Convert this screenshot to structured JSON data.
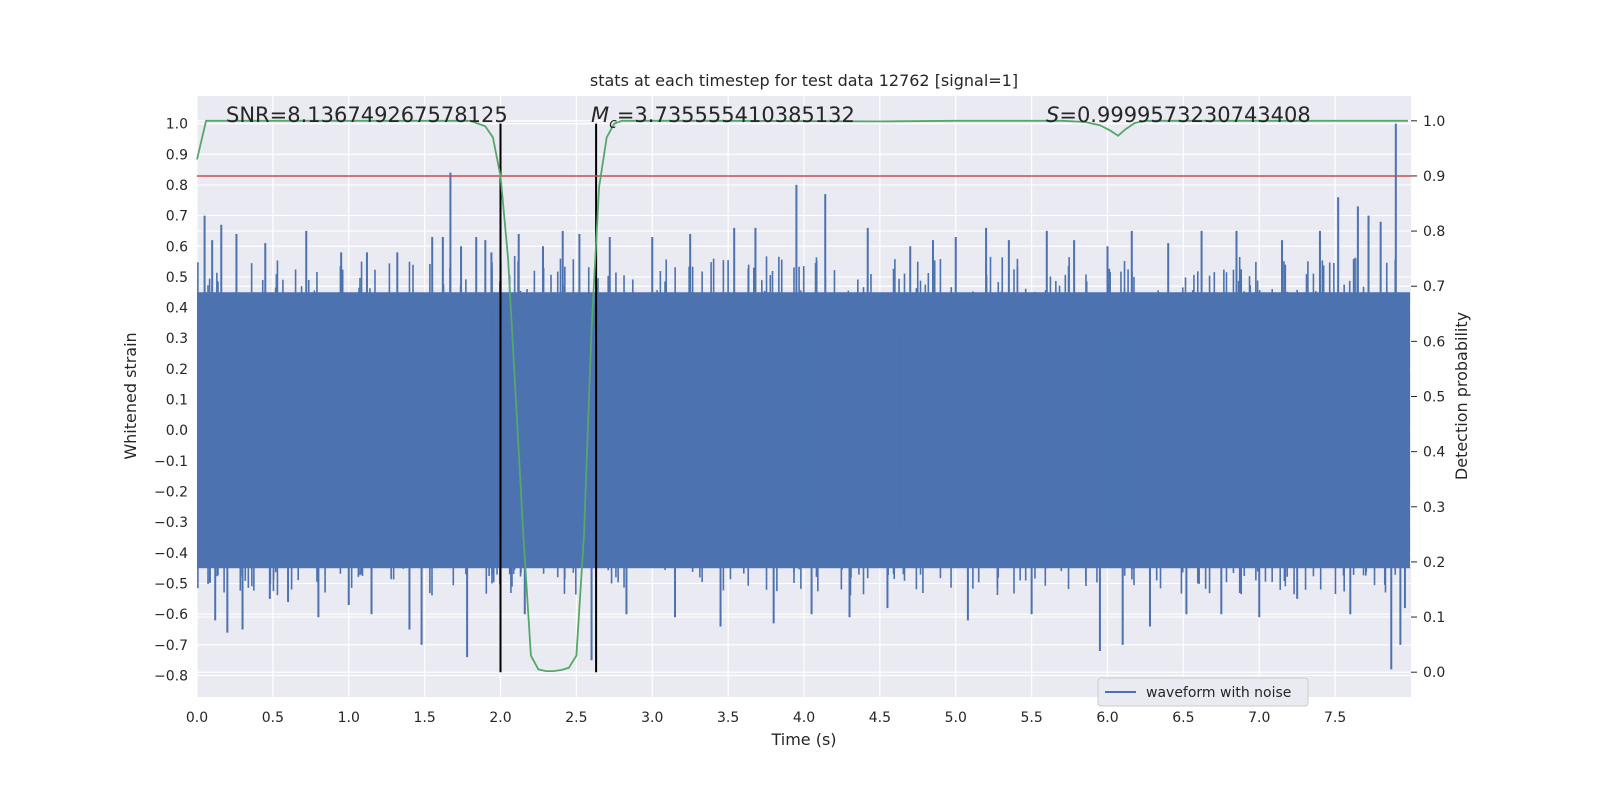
{
  "chart_data": {
    "type": "line",
    "title": "stats at each timestep for test data 12762 [signal=1]",
    "xlabel": "Time (s)",
    "ylabel": "Whitened strain",
    "y2label": "Detection probability",
    "xlim": [
      0.0,
      8.0
    ],
    "ylim": [
      -0.87,
      1.09
    ],
    "y2lim": [
      -0.045,
      1.045
    ],
    "x_ticks": [
      "0.0",
      "0.5",
      "1.0",
      "1.5",
      "2.0",
      "2.5",
      "3.0",
      "3.5",
      "4.0",
      "4.5",
      "5.0",
      "5.5",
      "6.0",
      "6.5",
      "7.0",
      "7.5"
    ],
    "y_ticks": [
      "1.0",
      "0.9",
      "0.8",
      "0.7",
      "0.6",
      "0.5",
      "0.4",
      "0.3",
      "0.2",
      "0.1",
      "0.0",
      "−0.1",
      "−0.2",
      "−0.3",
      "−0.4",
      "−0.5",
      "−0.6",
      "−0.7",
      "−0.8"
    ],
    "y2_ticks": [
      "1.0",
      "0.9",
      "0.8",
      "0.7",
      "0.6",
      "0.5",
      "0.4",
      "0.3",
      "0.2",
      "0.1",
      "0.0"
    ],
    "grid": true,
    "legend_position": "lower-center",
    "annotations": {
      "snr_label": "SNR=8.136749267578125",
      "mc_symbol": "M",
      "mc_subscript": "c",
      "mc_value": "=3.735555410385132",
      "s_symbol": "S",
      "s_value": "=0.9999573230743408"
    },
    "vertical_lines": [
      2.0,
      2.63
    ],
    "threshold_line_y2": 0.9,
    "series": [
      {
        "name": "waveform with noise",
        "color": "#4c72b0",
        "envelope_low_y": -0.45,
        "envelope_high_y": 0.45,
        "spikes": [
          {
            "x": 0.05,
            "y": 0.7
          },
          {
            "x": 0.1,
            "y": 0.62
          },
          {
            "x": 0.12,
            "y": -0.62
          },
          {
            "x": 0.16,
            "y": 0.67
          },
          {
            "x": 0.2,
            "y": -0.66
          },
          {
            "x": 0.26,
            "y": 0.64
          },
          {
            "x": 0.3,
            "y": -0.65
          },
          {
            "x": 0.45,
            "y": 0.61
          },
          {
            "x": 0.48,
            "y": -0.55
          },
          {
            "x": 0.6,
            "y": -0.56
          },
          {
            "x": 0.72,
            "y": 0.65
          },
          {
            "x": 0.8,
            "y": -0.61
          },
          {
            "x": 0.95,
            "y": 0.58
          },
          {
            "x": 1.0,
            "y": -0.57
          },
          {
            "x": 1.12,
            "y": 0.58
          },
          {
            "x": 1.15,
            "y": -0.6
          },
          {
            "x": 1.32,
            "y": 0.58
          },
          {
            "x": 1.4,
            "y": -0.65
          },
          {
            "x": 1.48,
            "y": -0.7
          },
          {
            "x": 1.55,
            "y": 0.63
          },
          {
            "x": 1.62,
            "y": 0.63
          },
          {
            "x": 1.67,
            "y": 0.84
          },
          {
            "x": 1.74,
            "y": 0.6
          },
          {
            "x": 1.78,
            "y": -0.74
          },
          {
            "x": 1.84,
            "y": 0.63
          },
          {
            "x": 1.9,
            "y": 0.62
          },
          {
            "x": 1.94,
            "y": 0.58
          },
          {
            "x": 2.12,
            "y": 0.64
          },
          {
            "x": 2.16,
            "y": -0.6
          },
          {
            "x": 2.28,
            "y": 0.6
          },
          {
            "x": 2.41,
            "y": 0.65
          },
          {
            "x": 2.52,
            "y": 0.64
          },
          {
            "x": 2.6,
            "y": -0.75
          },
          {
            "x": 2.72,
            "y": 0.63
          },
          {
            "x": 2.83,
            "y": -0.6
          },
          {
            "x": 3.0,
            "y": 0.63
          },
          {
            "x": 3.15,
            "y": -0.61
          },
          {
            "x": 3.25,
            "y": 0.64
          },
          {
            "x": 3.45,
            "y": -0.64
          },
          {
            "x": 3.54,
            "y": 0.66
          },
          {
            "x": 3.68,
            "y": 0.66
          },
          {
            "x": 3.8,
            "y": -0.63
          },
          {
            "x": 3.95,
            "y": 0.8
          },
          {
            "x": 4.05,
            "y": -0.6
          },
          {
            "x": 4.14,
            "y": 0.77
          },
          {
            "x": 4.3,
            "y": -0.61
          },
          {
            "x": 4.42,
            "y": 0.66
          },
          {
            "x": 4.55,
            "y": -0.58
          },
          {
            "x": 4.7,
            "y": 0.6
          },
          {
            "x": 4.85,
            "y": 0.62
          },
          {
            "x": 5.0,
            "y": 0.63
          },
          {
            "x": 5.08,
            "y": -0.62
          },
          {
            "x": 5.2,
            "y": 0.66
          },
          {
            "x": 5.35,
            "y": 0.62
          },
          {
            "x": 5.5,
            "y": -0.6
          },
          {
            "x": 5.6,
            "y": 0.65
          },
          {
            "x": 5.78,
            "y": 0.62
          },
          {
            "x": 5.95,
            "y": -0.72
          },
          {
            "x": 6.0,
            "y": 0.6
          },
          {
            "x": 6.1,
            "y": -0.7
          },
          {
            "x": 6.16,
            "y": 0.65
          },
          {
            "x": 6.28,
            "y": -0.64
          },
          {
            "x": 6.4,
            "y": 0.61
          },
          {
            "x": 6.52,
            "y": -0.6
          },
          {
            "x": 6.62,
            "y": 0.65
          },
          {
            "x": 6.75,
            "y": -0.6
          },
          {
            "x": 6.85,
            "y": 0.65
          },
          {
            "x": 7.0,
            "y": -0.61
          },
          {
            "x": 7.15,
            "y": 0.62
          },
          {
            "x": 7.25,
            "y": -0.55
          },
          {
            "x": 7.4,
            "y": 0.65
          },
          {
            "x": 7.52,
            "y": 0.76
          },
          {
            "x": 7.6,
            "y": -0.6
          },
          {
            "x": 7.65,
            "y": 0.73
          },
          {
            "x": 7.72,
            "y": 0.7
          },
          {
            "x": 7.8,
            "y": 0.68
          },
          {
            "x": 7.87,
            "y": -0.78
          },
          {
            "x": 7.9,
            "y": 1.0
          },
          {
            "x": 7.93,
            "y": -0.7
          },
          {
            "x": 7.96,
            "y": -0.58
          }
        ]
      },
      {
        "name": "",
        "color": "#55a868",
        "axis": "y2",
        "points": [
          [
            0.0,
            0.93
          ],
          [
            0.06,
            1.0
          ],
          [
            1.4,
            1.0
          ],
          [
            1.8,
            1.0
          ],
          [
            1.9,
            0.99
          ],
          [
            1.95,
            0.97
          ],
          [
            2.0,
            0.9
          ],
          [
            2.05,
            0.75
          ],
          [
            2.1,
            0.5
          ],
          [
            2.15,
            0.25
          ],
          [
            2.2,
            0.03
          ],
          [
            2.25,
            0.005
          ],
          [
            2.3,
            0.002
          ],
          [
            2.35,
            0.002
          ],
          [
            2.4,
            0.004
          ],
          [
            2.45,
            0.008
          ],
          [
            2.5,
            0.03
          ],
          [
            2.55,
            0.25
          ],
          [
            2.6,
            0.62
          ],
          [
            2.65,
            0.88
          ],
          [
            2.7,
            0.97
          ],
          [
            2.75,
            0.995
          ],
          [
            2.8,
            1.0
          ],
          [
            3.5,
            1.0
          ],
          [
            4.5,
            0.999
          ],
          [
            5.0,
            1.0
          ],
          [
            5.7,
            1.0
          ],
          [
            5.85,
            0.998
          ],
          [
            5.95,
            0.992
          ],
          [
            6.02,
            0.982
          ],
          [
            6.07,
            0.973
          ],
          [
            6.12,
            0.985
          ],
          [
            6.18,
            0.996
          ],
          [
            6.25,
            1.0
          ],
          [
            7.98,
            1.0
          ]
        ]
      }
    ]
  }
}
